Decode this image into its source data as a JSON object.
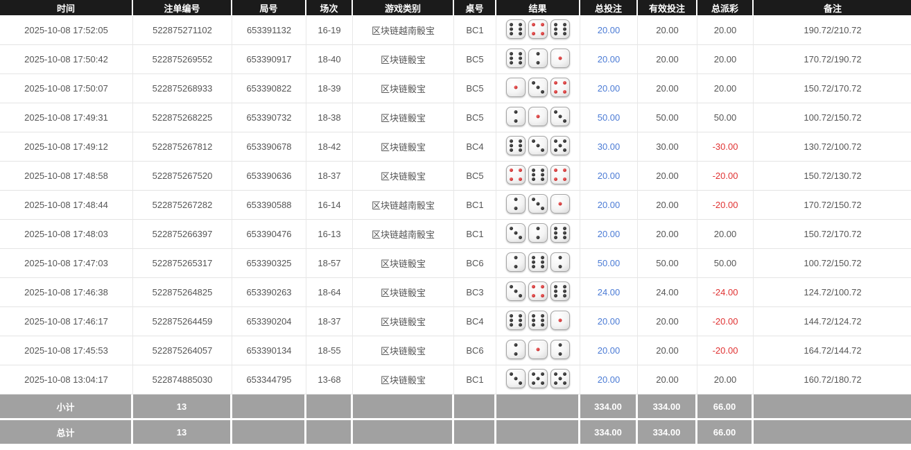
{
  "colors": {
    "header_bg": "#1b1b1b",
    "accent_blue": "#4b7bd5",
    "negative_red": "#e03131",
    "summary_bg": "#a1a1a1",
    "red_pip": "#b31212"
  },
  "table": {
    "columns": [
      {
        "key": "time",
        "label": "时间"
      },
      {
        "key": "bet_id",
        "label": "注单编号"
      },
      {
        "key": "round_id",
        "label": "局号"
      },
      {
        "key": "session",
        "label": "场次"
      },
      {
        "key": "game",
        "label": "游戏类别"
      },
      {
        "key": "table_no",
        "label": "桌号"
      },
      {
        "key": "result",
        "label": "结果"
      },
      {
        "key": "total_bet",
        "label": "总投注"
      },
      {
        "key": "valid_bet",
        "label": "有效投注"
      },
      {
        "key": "payout",
        "label": "总派彩"
      },
      {
        "key": "remark",
        "label": "备注"
      }
    ],
    "rows": [
      {
        "time": "2025-10-08 17:52:05",
        "bet_id": "522875271102",
        "round_id": "653391132",
        "session": "16-19",
        "game": "区块链越南骰宝",
        "table_no": "BC1",
        "dice": [
          6,
          4,
          6
        ],
        "total_bet": "20.00",
        "valid_bet": "20.00",
        "payout": "20.00",
        "remark": "190.72/210.72"
      },
      {
        "time": "2025-10-08 17:50:42",
        "bet_id": "522875269552",
        "round_id": "653390917",
        "session": "18-40",
        "game": "区块链骰宝",
        "table_no": "BC5",
        "dice": [
          6,
          2,
          1
        ],
        "total_bet": "20.00",
        "valid_bet": "20.00",
        "payout": "20.00",
        "remark": "170.72/190.72"
      },
      {
        "time": "2025-10-08 17:50:07",
        "bet_id": "522875268933",
        "round_id": "653390822",
        "session": "18-39",
        "game": "区块链骰宝",
        "table_no": "BC5",
        "dice": [
          1,
          3,
          4
        ],
        "total_bet": "20.00",
        "valid_bet": "20.00",
        "payout": "20.00",
        "remark": "150.72/170.72"
      },
      {
        "time": "2025-10-08 17:49:31",
        "bet_id": "522875268225",
        "round_id": "653390732",
        "session": "18-38",
        "game": "区块链骰宝",
        "table_no": "BC5",
        "dice": [
          2,
          1,
          3
        ],
        "total_bet": "50.00",
        "valid_bet": "50.00",
        "payout": "50.00",
        "remark": "100.72/150.72"
      },
      {
        "time": "2025-10-08 17:49:12",
        "bet_id": "522875267812",
        "round_id": "653390678",
        "session": "18-42",
        "game": "区块链骰宝",
        "table_no": "BC4",
        "dice": [
          6,
          3,
          5
        ],
        "total_bet": "30.00",
        "valid_bet": "30.00",
        "payout": "-30.00",
        "remark": "130.72/100.72"
      },
      {
        "time": "2025-10-08 17:48:58",
        "bet_id": "522875267520",
        "round_id": "653390636",
        "session": "18-37",
        "game": "区块链骰宝",
        "table_no": "BC5",
        "dice": [
          4,
          6,
          4
        ],
        "total_bet": "20.00",
        "valid_bet": "20.00",
        "payout": "-20.00",
        "remark": "150.72/130.72"
      },
      {
        "time": "2025-10-08 17:48:44",
        "bet_id": "522875267282",
        "round_id": "653390588",
        "session": "16-14",
        "game": "区块链越南骰宝",
        "table_no": "BC1",
        "dice": [
          2,
          3,
          1
        ],
        "total_bet": "20.00",
        "valid_bet": "20.00",
        "payout": "-20.00",
        "remark": "170.72/150.72"
      },
      {
        "time": "2025-10-08 17:48:03",
        "bet_id": "522875266397",
        "round_id": "653390476",
        "session": "16-13",
        "game": "区块链越南骰宝",
        "table_no": "BC1",
        "dice": [
          3,
          2,
          6
        ],
        "total_bet": "20.00",
        "valid_bet": "20.00",
        "payout": "20.00",
        "remark": "150.72/170.72"
      },
      {
        "time": "2025-10-08 17:47:03",
        "bet_id": "522875265317",
        "round_id": "653390325",
        "session": "18-57",
        "game": "区块链骰宝",
        "table_no": "BC6",
        "dice": [
          2,
          6,
          2
        ],
        "total_bet": "50.00",
        "valid_bet": "50.00",
        "payout": "50.00",
        "remark": "100.72/150.72"
      },
      {
        "time": "2025-10-08 17:46:38",
        "bet_id": "522875264825",
        "round_id": "653390263",
        "session": "18-64",
        "game": "区块链骰宝",
        "table_no": "BC3",
        "dice": [
          3,
          4,
          6
        ],
        "total_bet": "24.00",
        "valid_bet": "24.00",
        "payout": "-24.00",
        "remark": "124.72/100.72"
      },
      {
        "time": "2025-10-08 17:46:17",
        "bet_id": "522875264459",
        "round_id": "653390204",
        "session": "18-37",
        "game": "区块链骰宝",
        "table_no": "BC4",
        "dice": [
          6,
          6,
          1
        ],
        "total_bet": "20.00",
        "valid_bet": "20.00",
        "payout": "-20.00",
        "remark": "144.72/124.72"
      },
      {
        "time": "2025-10-08 17:45:53",
        "bet_id": "522875264057",
        "round_id": "653390134",
        "session": "18-55",
        "game": "区块链骰宝",
        "table_no": "BC6",
        "dice": [
          2,
          1,
          2
        ],
        "total_bet": "20.00",
        "valid_bet": "20.00",
        "payout": "-20.00",
        "remark": "164.72/144.72"
      },
      {
        "time": "2025-10-08 13:04:17",
        "bet_id": "522874885030",
        "round_id": "653344795",
        "session": "13-68",
        "game": "区块链骰宝",
        "table_no": "BC1",
        "dice": [
          3,
          5,
          5
        ],
        "total_bet": "20.00",
        "valid_bet": "20.00",
        "payout": "20.00",
        "remark": "160.72/180.72"
      }
    ],
    "summary_rows": [
      {
        "label": "小计",
        "count": "13",
        "total_bet": "334.00",
        "valid_bet": "334.00",
        "payout": "66.00"
      },
      {
        "label": "总计",
        "count": "13",
        "total_bet": "334.00",
        "valid_bet": "334.00",
        "payout": "66.00"
      }
    ]
  }
}
